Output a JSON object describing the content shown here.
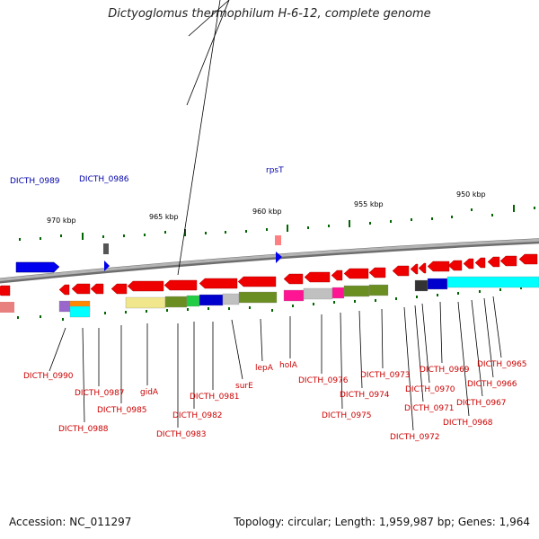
{
  "title": "Dictyoglomus thermophilum H-6-12, complete genome",
  "footer": {
    "accession_label": "Accession:",
    "accession": "NC_011297",
    "topology_label": "Topology:",
    "topology": "circular",
    "length_label": "Length:",
    "length": "1,959,987 bp",
    "genes_label": "Genes:",
    "genes": "1,964"
  },
  "colors": {
    "backbone": "#8c8c8c",
    "forward_gene": "#0000ee",
    "reverse_gene": "#ee0000",
    "forward_label": "#0000aa",
    "reverse_label": "#cc0000",
    "tick": "#006600",
    "cog_bars": [
      "#f0e68c",
      "#6b8e23",
      "#22cc44",
      "#0000cc",
      "#c0c0c0",
      "#ff1493",
      "#00ffff",
      "#9966cc",
      "#ff8800"
    ]
  },
  "scale_labels": [
    "970 kbp",
    "965 kbp",
    "960 kbp",
    "955 kbp",
    "950 kbp"
  ],
  "forward_labels": [
    "DICTH_0989",
    "DICTH_0986",
    "rpsT"
  ],
  "reverse_labels": [
    "DICTH_0990",
    "DICTH_0988",
    "DICTH_0987",
    "DICTH_0985",
    "gidA",
    "DICTH_0983",
    "DICTH_0982",
    "DICTH_0981",
    "surE",
    "lepA",
    "holA",
    "DICTH_0976",
    "DICTH_0975",
    "DICTH_0974",
    "DICTH_0973",
    "DICTH_0972",
    "DICTH_0971",
    "DICTH_0970",
    "DICTH_0969",
    "DICTH_0968",
    "DICTH_0967",
    "DICTH_0966",
    "DICTH_0965"
  ]
}
